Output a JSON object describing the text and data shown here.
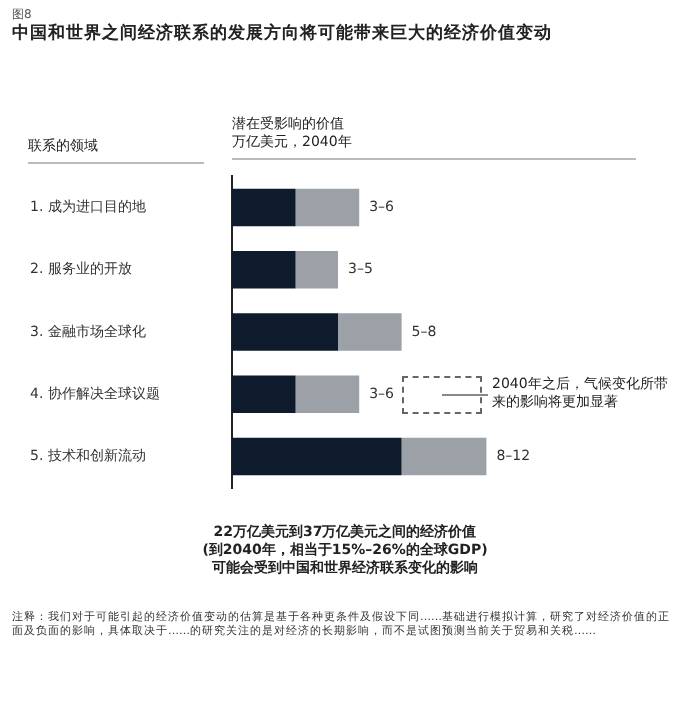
{
  "chart_data": {
    "type": "bar",
    "orientation": "horizontal",
    "stacked": true,
    "title": "中国和世界之间经济联系的发展方向将可能带来巨大的经济价值变动",
    "subtitle": "图8",
    "ylabel": "联系的领域",
    "xlabel": "潜在受影响的价值万亿美元，2040年",
    "categories": [
      "1. 成为进口目的地",
      "2. 服务业的开放",
      "3. 金融市场全球化",
      "4. 协作解决全球议题",
      "5. 技术和创新流动"
    ],
    "series": [
      {
        "color": "#0e1b2c",
        "values": [
          3,
          3,
          5,
          3,
          8
        ]
      },
      {
        "color": "#9ba1a7",
        "values": [
          3,
          2,
          3,
          3,
          4
        ],
        "value_labels": [
          "3–6",
          "3–5",
          "5–8",
          "3–6",
          "8–12"
        ]
      }
    ],
    "tick_labels": "y",
    "grid": false,
    "legend": false,
    "annotations": [
      "2040年之后，气候变化所带来的影响将更加显著",
      "22万亿美元到37万亿美元之间的经济价值\n(到2040年，相当于15%–26%的全球GDP)\n可能会受到中国和世界经济联系变化的影响",
      "注释：我们对于可能引起的经济价值变动的估算是基于各种更条件及假设下同……基础进行模拟计算，研究了对经济价值的正面及负面的影响，具体取决于……的研究关注的是对经济的长期影响，而不是试图预测当前关于贸易和关税……"
    ]
  }
}
